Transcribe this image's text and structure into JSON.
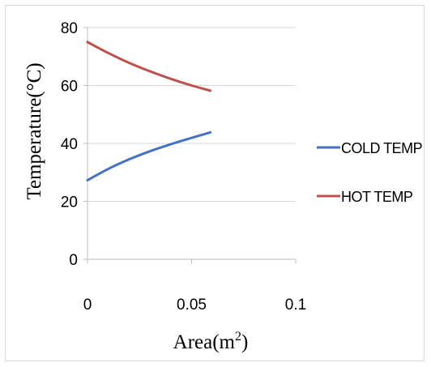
{
  "chart_data": {
    "type": "line",
    "title": "",
    "xlabel": {
      "text": "Area(m",
      "sup": "2",
      "tail": ")"
    },
    "ylabel": "Temperature(°C)",
    "xlim": [
      0,
      0.1
    ],
    "ylim": [
      0,
      80
    ],
    "x_ticks": [
      0,
      0.05,
      0.1
    ],
    "x_tick_labels": [
      "0",
      "0.05",
      "0.1"
    ],
    "y_ticks": [
      0,
      20,
      40,
      60,
      80
    ],
    "y_tick_labels": [
      "0",
      "20",
      "40",
      "60",
      "80"
    ],
    "grid": "horizontal",
    "legend_position": "right",
    "series": [
      {
        "name": "COLD TEMP",
        "color": "#4472c4",
        "x": [
          0,
          0.01,
          0.02,
          0.03,
          0.04,
          0.05,
          0.059
        ],
        "y": [
          27.3,
          31.2,
          34.5,
          37.3,
          39.7,
          41.9,
          43.8
        ]
      },
      {
        "name": "HOT TEMP",
        "color": "#c0504d",
        "x": [
          0,
          0.01,
          0.02,
          0.03,
          0.04,
          0.05,
          0.059
        ],
        "y": [
          75.0,
          71.2,
          67.8,
          64.9,
          62.3,
          60.0,
          58.2
        ]
      }
    ]
  }
}
